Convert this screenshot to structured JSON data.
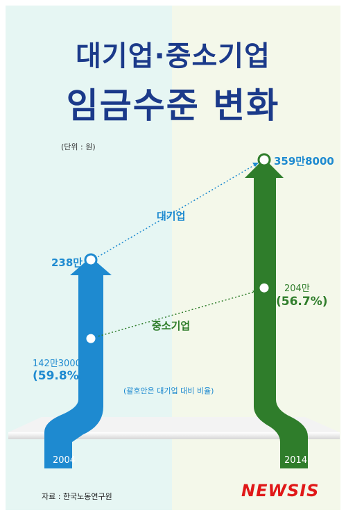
{
  "title": {
    "line1": "대기업·중소기업",
    "line2": "임금수준 변화"
  },
  "unit_note": "(단위 : 원)",
  "footnote": "(괄호안은 대기업 대비 비율)",
  "source": "자료 : 한국노동연구원",
  "logo": "NEWSIS",
  "colors": {
    "blue": "#1e8ad0",
    "green": "#2f7d2b",
    "title": "#1b3a8a",
    "logo": "#e01818"
  },
  "chart_data": {
    "type": "line",
    "x": [
      "2004",
      "2014"
    ],
    "series": [
      {
        "name": "대기업",
        "values": [
          2380000,
          3598000
        ],
        "value_labels": [
          "238만",
          "359만8000"
        ],
        "ratio_labels": [
          "",
          ""
        ]
      },
      {
        "name": "중소기업",
        "values": [
          1423000,
          2040000
        ],
        "value_labels": [
          "142만3000",
          "204만"
        ],
        "ratio_labels": [
          "(59.8%)",
          "(56.7%)"
        ]
      }
    ],
    "ylim": [
      0,
      4000000
    ]
  }
}
